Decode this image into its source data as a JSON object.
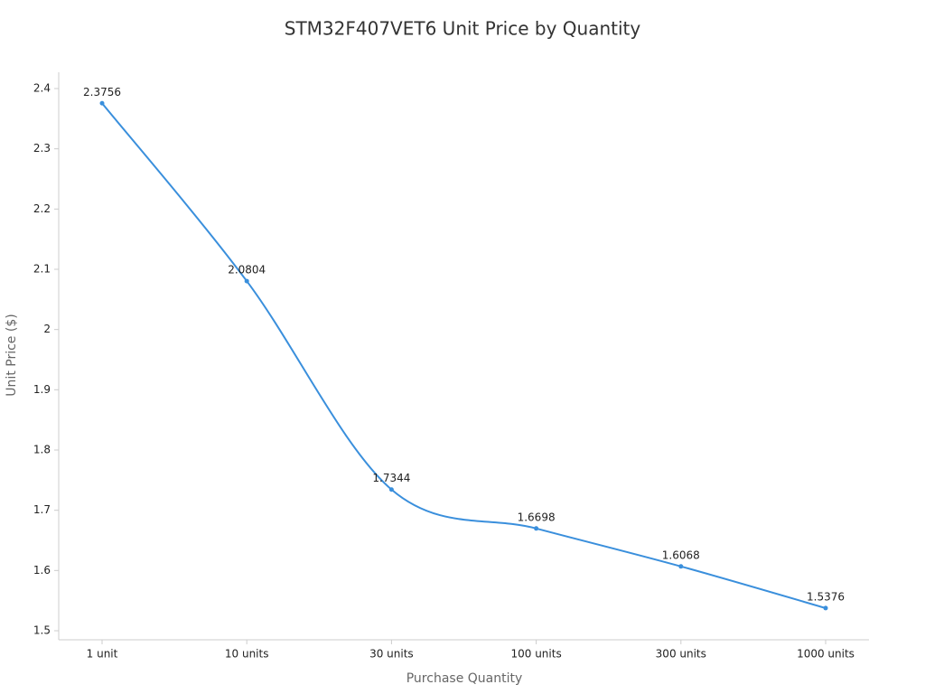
{
  "chart_data": {
    "type": "line",
    "title": "STM32F407VET6 Unit Price by Quantity",
    "x_label": "Purchase Quantity",
    "y_label": "Unit Price ($)",
    "categories": [
      "1 unit",
      "10 units",
      "30 units",
      "100 units",
      "300 units",
      "1000 units"
    ],
    "series": [
      {
        "name": "Unit Price",
        "color": "#3a8fdc",
        "values": [
          2.3756,
          2.0804,
          1.7344,
          1.6698,
          1.6068,
          1.5376
        ]
      }
    ],
    "ylim": [
      1.485,
      2.427
    ],
    "yticks": [
      1.5,
      1.6,
      1.7,
      1.8,
      1.9,
      2,
      2.1,
      2.2,
      2.3,
      2.4
    ],
    "smooth": true,
    "data_labels": true
  }
}
